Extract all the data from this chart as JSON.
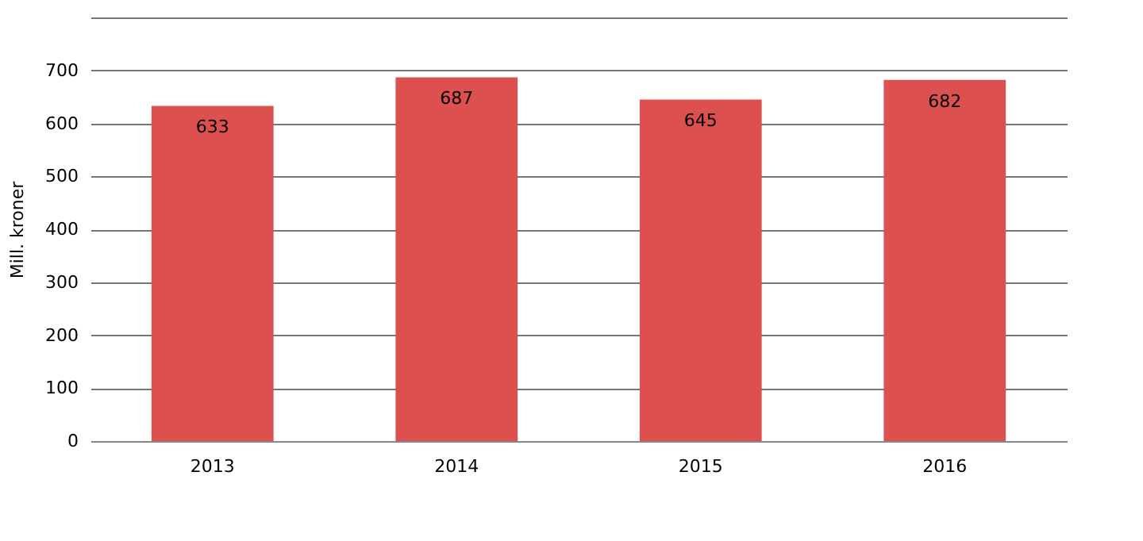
{
  "chart_data": {
    "type": "bar",
    "ylabel": "Mill. kroner",
    "categories": [
      "2013",
      "2014",
      "2015",
      "2016"
    ],
    "values": [
      633,
      687,
      645,
      682
    ],
    "color": "#dc5050",
    "ylim": [
      0,
      800
    ],
    "yticks": [
      0,
      100,
      200,
      300,
      400,
      500,
      600,
      700,
      {
        "value": 800,
        "label": null
      }
    ],
    "grid": "y",
    "data_labels": true
  }
}
